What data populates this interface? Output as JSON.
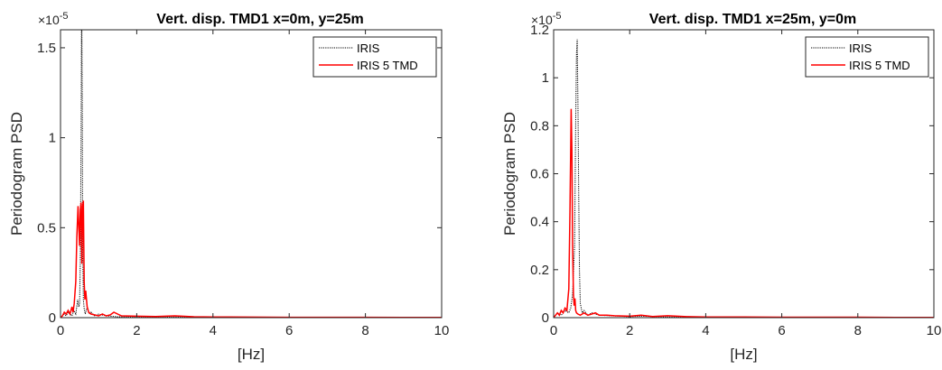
{
  "chart_data": [
    {
      "type": "line",
      "title": "Vert. disp. TMD1 x=0m, y=25m",
      "xlabel": "[Hz]",
      "ylabel": "Periodogram PSD",
      "exponent_label": "×10",
      "exponent_power": "-5",
      "xlim": [
        0,
        10
      ],
      "ylim": [
        0,
        1.6
      ],
      "xticks": [
        "0",
        "2",
        "4",
        "6",
        "8",
        "10"
      ],
      "yticks": [
        "0",
        "0.5",
        "1",
        "1.5"
      ],
      "ytick_values": [
        0,
        0.5,
        1,
        1.5
      ],
      "legend_position": "top-right",
      "grid": false,
      "series": [
        {
          "name": "IRIS",
          "color": "#000000",
          "style": "dotted",
          "x": [
            0,
            0.1,
            0.15,
            0.2,
            0.3,
            0.35,
            0.4,
            0.45,
            0.48,
            0.5,
            0.52,
            0.54,
            0.55,
            0.56,
            0.57,
            0.58,
            0.6,
            0.62,
            0.65,
            0.7,
            0.75,
            0.8,
            0.9,
            1.0,
            1.2,
            1.5,
            2,
            3,
            4,
            5,
            6,
            7,
            8,
            9,
            10
          ],
          "y": [
            0,
            0.02,
            0.01,
            0.03,
            0.01,
            0.04,
            0.02,
            0.1,
            0.06,
            0.08,
            0.3,
            1.0,
            1.6,
            1.6,
            1.2,
            0.4,
            0.1,
            0.05,
            0.02,
            0.06,
            0.02,
            0.03,
            0.01,
            0.02,
            0.01,
            0.005,
            0.003,
            0.004,
            0.002,
            0.002,
            0.002,
            0.001,
            0.001,
            0.001,
            0.001
          ]
        },
        {
          "name": "IRIS 5 TMD",
          "color": "#ff0000",
          "style": "solid",
          "x": [
            0,
            0.05,
            0.1,
            0.15,
            0.2,
            0.25,
            0.3,
            0.33,
            0.36,
            0.4,
            0.43,
            0.46,
            0.48,
            0.5,
            0.52,
            0.54,
            0.56,
            0.58,
            0.6,
            0.62,
            0.64,
            0.66,
            0.7,
            0.74,
            0.8,
            0.9,
            1.0,
            1.1,
            1.2,
            1.3,
            1.4,
            1.6,
            2.0,
            2.5,
            3.0,
            3.5,
            4,
            5,
            6,
            7,
            8,
            9,
            10
          ],
          "y": [
            0,
            0.01,
            0.03,
            0.02,
            0.04,
            0.02,
            0.06,
            0.03,
            0.08,
            0.2,
            0.45,
            0.62,
            0.5,
            0.4,
            0.6,
            0.64,
            0.3,
            0.62,
            0.65,
            0.2,
            0.1,
            0.15,
            0.06,
            0.03,
            0.02,
            0.015,
            0.01,
            0.02,
            0.01,
            0.015,
            0.03,
            0.01,
            0.008,
            0.006,
            0.01,
            0.005,
            0.004,
            0.003,
            0.002,
            0.002,
            0.002,
            0.001,
            0.001
          ]
        }
      ]
    },
    {
      "type": "line",
      "title": "Vert. disp. TMD1 x=25m, y=0m",
      "xlabel": "[Hz]",
      "ylabel": "Periodogram PSD",
      "exponent_label": "×10",
      "exponent_power": "-5",
      "xlim": [
        0,
        10
      ],
      "ylim": [
        0,
        1.2
      ],
      "xticks": [
        "0",
        "2",
        "4",
        "6",
        "8",
        "10"
      ],
      "yticks": [
        "0",
        "0.2",
        "0.4",
        "0.6",
        "0.8",
        "1",
        "1.2"
      ],
      "ytick_values": [
        0,
        0.2,
        0.4,
        0.6,
        0.8,
        1,
        1.2
      ],
      "legend_position": "top-right",
      "grid": false,
      "series": [
        {
          "name": "IRIS",
          "color": "#000000",
          "style": "dotted",
          "x": [
            0,
            0.1,
            0.2,
            0.3,
            0.4,
            0.45,
            0.5,
            0.55,
            0.58,
            0.6,
            0.62,
            0.64,
            0.66,
            0.68,
            0.7,
            0.75,
            0.8,
            0.9,
            1.0,
            1.2,
            1.5,
            2,
            2.3,
            3,
            4,
            5,
            6,
            7,
            8,
            9,
            10
          ],
          "y": [
            0,
            0.02,
            0.01,
            0.03,
            0.02,
            0.04,
            0.1,
            0.3,
            0.8,
            1.1,
            1.16,
            0.9,
            0.5,
            0.2,
            0.06,
            0.02,
            0.03,
            0.01,
            0.02,
            0.01,
            0.008,
            0.004,
            0.006,
            0.003,
            0.002,
            0.002,
            0.002,
            0.001,
            0.001,
            0.001,
            0.001
          ]
        },
        {
          "name": "IRIS 5 TMD",
          "color": "#ff0000",
          "style": "solid",
          "x": [
            0,
            0.05,
            0.1,
            0.15,
            0.2,
            0.25,
            0.3,
            0.35,
            0.4,
            0.43,
            0.46,
            0.48,
            0.5,
            0.52,
            0.54,
            0.56,
            0.58,
            0.6,
            0.64,
            0.7,
            0.8,
            0.9,
            1.0,
            1.1,
            1.2,
            1.4,
            1.6,
            2.0,
            2.3,
            2.6,
            3.0,
            3.5,
            4,
            5,
            6,
            7,
            8,
            9,
            10
          ],
          "y": [
            0,
            0.01,
            0.02,
            0.01,
            0.03,
            0.02,
            0.04,
            0.03,
            0.12,
            0.45,
            0.87,
            0.7,
            0.3,
            0.1,
            0.05,
            0.08,
            0.03,
            0.02,
            0.015,
            0.01,
            0.02,
            0.01,
            0.015,
            0.02,
            0.01,
            0.01,
            0.008,
            0.006,
            0.01,
            0.005,
            0.008,
            0.004,
            0.003,
            0.003,
            0.002,
            0.002,
            0.002,
            0.001,
            0.001
          ]
        }
      ]
    }
  ]
}
